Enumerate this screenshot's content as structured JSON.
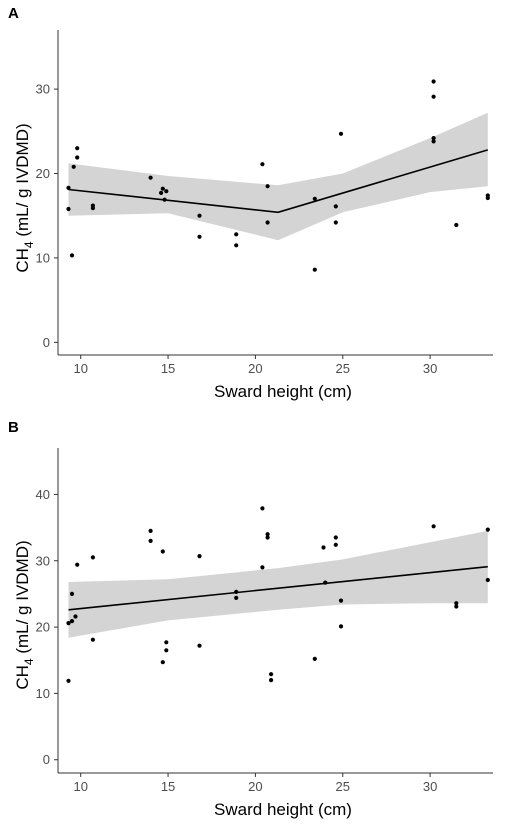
{
  "figure": {
    "panels": [
      "A",
      "B"
    ]
  },
  "colors": {
    "ribbon": "#d4d4d4",
    "line": "#000000",
    "point": "#000000",
    "axis": "#333333"
  },
  "chart_data": [
    {
      "panel_label": "A",
      "type": "scatter",
      "xlabel": "Sward height (cm)",
      "ylabel_main": "CH",
      "ylabel_sub": "4",
      "ylabel_rest": " (mL/ g IVDMD)",
      "xlim": [
        8.7,
        33.6
      ],
      "ylim": [
        -1.5,
        37
      ],
      "xticks": [
        10,
        15,
        20,
        25,
        30
      ],
      "xtick_labels": [
        "10",
        "15",
        "20",
        "25",
        "30"
      ],
      "yticks": [
        0,
        10,
        20,
        30
      ],
      "ytick_labels": [
        "0",
        "10",
        "20",
        "30"
      ],
      "grid": false,
      "points": [
        [
          9.3,
          18.3
        ],
        [
          9.3,
          15.8
        ],
        [
          9.5,
          10.3
        ],
        [
          9.6,
          20.8
        ],
        [
          9.8,
          23.0
        ],
        [
          9.8,
          21.9
        ],
        [
          10.7,
          16.2
        ],
        [
          10.7,
          15.9
        ],
        [
          14.0,
          19.5
        ],
        [
          14.6,
          17.7
        ],
        [
          14.7,
          18.2
        ],
        [
          14.9,
          17.9
        ],
        [
          14.8,
          16.9
        ],
        [
          16.8,
          15.0
        ],
        [
          16.8,
          12.5
        ],
        [
          18.9,
          12.8
        ],
        [
          18.9,
          11.5
        ],
        [
          20.4,
          21.1
        ],
        [
          20.7,
          18.5
        ],
        [
          20.7,
          14.2
        ],
        [
          23.4,
          17.0
        ],
        [
          23.4,
          8.6
        ],
        [
          24.6,
          14.2
        ],
        [
          24.6,
          16.1
        ],
        [
          24.9,
          24.7
        ],
        [
          30.2,
          30.9
        ],
        [
          30.2,
          29.1
        ],
        [
          30.2,
          24.2
        ],
        [
          30.2,
          23.8
        ],
        [
          31.5,
          13.9
        ],
        [
          33.3,
          17.4
        ],
        [
          33.3,
          17.1
        ]
      ],
      "fit_line": {
        "x": [
          9.3,
          21.3,
          33.3
        ],
        "y": [
          18.1,
          15.4,
          22.8
        ]
      },
      "confidence_band": {
        "x": [
          9.3,
          15.0,
          21.3,
          25.0,
          30.0,
          33.3
        ],
        "lower": [
          15.0,
          15.3,
          12.1,
          15.4,
          17.8,
          18.5
        ],
        "upper": [
          21.2,
          19.7,
          18.6,
          20.0,
          24.2,
          27.2
        ]
      }
    },
    {
      "panel_label": "B",
      "type": "scatter",
      "xlabel": "Sward height (cm)",
      "ylabel_main": "CH",
      "ylabel_sub": "4",
      "ylabel_rest": " (mL/ g IVDMD)",
      "xlim": [
        8.7,
        33.6
      ],
      "ylim": [
        -2,
        47
      ],
      "xticks": [
        10,
        15,
        20,
        25,
        30
      ],
      "xtick_labels": [
        "10",
        "15",
        "20",
        "25",
        "30"
      ],
      "yticks": [
        0,
        10,
        20,
        30,
        40
      ],
      "ytick_labels": [
        "0",
        "10",
        "20",
        "30",
        "40"
      ],
      "grid": false,
      "points": [
        [
          9.3,
          11.9
        ],
        [
          9.3,
          20.6
        ],
        [
          9.5,
          20.9
        ],
        [
          9.5,
          25.0
        ],
        [
          9.7,
          21.6
        ],
        [
          9.8,
          29.4
        ],
        [
          10.7,
          18.1
        ],
        [
          10.7,
          30.5
        ],
        [
          14.0,
          34.5
        ],
        [
          14.0,
          33.0
        ],
        [
          14.7,
          31.4
        ],
        [
          14.7,
          14.7
        ],
        [
          14.9,
          16.5
        ],
        [
          14.9,
          17.7
        ],
        [
          16.8,
          30.7
        ],
        [
          16.8,
          17.2
        ],
        [
          18.9,
          25.3
        ],
        [
          18.9,
          24.4
        ],
        [
          20.4,
          37.9
        ],
        [
          20.4,
          29.0
        ],
        [
          20.7,
          34.0
        ],
        [
          20.7,
          33.5
        ],
        [
          20.9,
          12.9
        ],
        [
          20.9,
          12.0
        ],
        [
          23.4,
          15.2
        ],
        [
          23.9,
          32.0
        ],
        [
          24.0,
          26.7
        ],
        [
          24.6,
          33.5
        ],
        [
          24.6,
          32.4
        ],
        [
          24.9,
          24.0
        ],
        [
          24.9,
          20.1
        ],
        [
          30.2,
          35.2
        ],
        [
          31.5,
          23.1
        ],
        [
          31.5,
          23.6
        ],
        [
          33.3,
          34.7
        ],
        [
          33.3,
          27.1
        ]
      ],
      "fit_line": {
        "x": [
          9.3,
          33.3
        ],
        "y": [
          22.6,
          29.1
        ]
      },
      "confidence_band": {
        "x": [
          9.3,
          15.0,
          21.3,
          25.0,
          30.0,
          33.3
        ],
        "lower": [
          18.4,
          21.0,
          22.6,
          23.4,
          23.6,
          23.6
        ],
        "upper": [
          26.8,
          27.2,
          28.9,
          30.2,
          32.8,
          34.5
        ]
      }
    }
  ]
}
